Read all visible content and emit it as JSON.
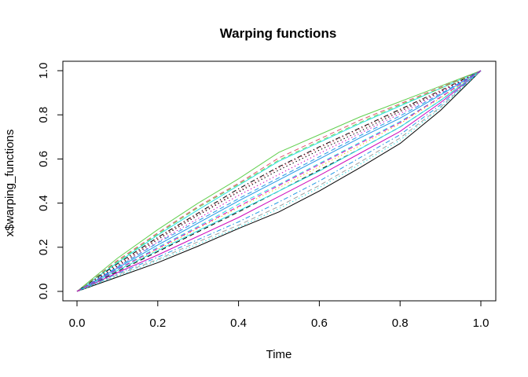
{
  "chart_data": {
    "type": "line",
    "title": "Warping functions",
    "xlabel": "Time",
    "ylabel": "x$warping_functions",
    "xlim": [
      0,
      1
    ],
    "ylim": [
      0,
      1
    ],
    "xticks": [
      0.0,
      0.2,
      0.4,
      0.6,
      0.8,
      1.0
    ],
    "yticks": [
      0.0,
      0.2,
      0.4,
      0.6,
      0.8,
      1.0
    ],
    "xtick_labels": [
      "0.0",
      "0.2",
      "0.4",
      "0.6",
      "0.8",
      "1.0"
    ],
    "ytick_labels": [
      "0.0",
      "0.2",
      "0.4",
      "0.6",
      "0.8",
      "1.0"
    ],
    "grid": false,
    "legend": "none",
    "x": [
      0,
      0.1,
      0.2,
      0.3,
      0.4,
      0.5,
      0.6,
      0.7,
      0.8,
      0.9,
      1.0
    ],
    "series": [
      {
        "color": "#000000",
        "dash": "solid",
        "values": [
          0,
          0.065,
          0.13,
          0.205,
          0.285,
          0.36,
          0.455,
          0.56,
          0.67,
          0.82,
          1
        ]
      },
      {
        "color": "#61d04f",
        "dash": "solid",
        "values": [
          0,
          0.15,
          0.28,
          0.4,
          0.51,
          0.63,
          0.71,
          0.79,
          0.86,
          0.93,
          1
        ]
      },
      {
        "color": "#28e2e5",
        "dash": "solid",
        "values": [
          0,
          0.13,
          0.255,
          0.37,
          0.48,
          0.59,
          0.675,
          0.76,
          0.84,
          0.92,
          1
        ]
      },
      {
        "color": "#df536b",
        "dash": "dashed",
        "values": [
          0,
          0.14,
          0.265,
          0.385,
          0.49,
          0.605,
          0.69,
          0.775,
          0.85,
          0.925,
          1
        ]
      },
      {
        "color": "#000000",
        "dash": "dashdot",
        "values": [
          0,
          0.125,
          0.245,
          0.355,
          0.465,
          0.565,
          0.655,
          0.74,
          0.825,
          0.91,
          1
        ]
      },
      {
        "color": "#cd0bbc",
        "dash": "dotted",
        "values": [
          0,
          0.11,
          0.225,
          0.33,
          0.435,
          0.53,
          0.625,
          0.715,
          0.805,
          0.9,
          1
        ]
      },
      {
        "color": "#2297e6",
        "dash": "solid",
        "values": [
          0,
          0.105,
          0.21,
          0.31,
          0.41,
          0.505,
          0.6,
          0.695,
          0.785,
          0.89,
          1
        ]
      },
      {
        "color": "#28e2e5",
        "dash": "dashed",
        "values": [
          0,
          0.1,
          0.2,
          0.295,
          0.395,
          0.485,
          0.58,
          0.675,
          0.77,
          0.88,
          1
        ]
      },
      {
        "color": "#f5c710",
        "dash": "dotted",
        "values": [
          0,
          0.095,
          0.19,
          0.285,
          0.38,
          0.47,
          0.565,
          0.66,
          0.76,
          0.875,
          1
        ]
      },
      {
        "color": "#000000",
        "dash": "dashed",
        "values": [
          0,
          0.09,
          0.18,
          0.27,
          0.36,
          0.455,
          0.55,
          0.645,
          0.745,
          0.865,
          1
        ]
      },
      {
        "color": "#cd0bbc",
        "dash": "solid",
        "values": [
          0,
          0.085,
          0.165,
          0.25,
          0.335,
          0.43,
          0.525,
          0.625,
          0.725,
          0.855,
          1
        ]
      },
      {
        "color": "#28e2e5",
        "dash": "solid",
        "values": [
          0,
          0.095,
          0.185,
          0.275,
          0.365,
          0.455,
          0.545,
          0.645,
          0.745,
          0.865,
          1
        ]
      },
      {
        "color": "#2297e6",
        "dash": "dashdot",
        "values": [
          0,
          0.08,
          0.155,
          0.235,
          0.315,
          0.405,
          0.5,
          0.605,
          0.71,
          0.845,
          1
        ]
      },
      {
        "color": "#9e9e9e",
        "dash": "dashed",
        "values": [
          0,
          0.075,
          0.145,
          0.225,
          0.3,
          0.385,
          0.48,
          0.585,
          0.695,
          0.835,
          1
        ]
      },
      {
        "color": "#28e2e5",
        "dash": "dotted",
        "values": [
          0,
          0.07,
          0.14,
          0.215,
          0.29,
          0.375,
          0.47,
          0.575,
          0.685,
          0.83,
          1
        ]
      },
      {
        "color": "#000000",
        "dash": "dotted",
        "values": [
          0,
          0.115,
          0.235,
          0.345,
          0.45,
          0.55,
          0.64,
          0.725,
          0.815,
          0.905,
          1
        ]
      },
      {
        "color": "#df536b",
        "dash": "dotted",
        "values": [
          0,
          0.12,
          0.24,
          0.35,
          0.455,
          0.56,
          0.65,
          0.735,
          0.82,
          0.91,
          1
        ]
      },
      {
        "color": "#61d04f",
        "dash": "dashed",
        "values": [
          0,
          0.135,
          0.26,
          0.38,
          0.485,
          0.595,
          0.68,
          0.765,
          0.845,
          0.92,
          1
        ]
      },
      {
        "color": "#2297e6",
        "dash": "dashed",
        "values": [
          0,
          0.11,
          0.22,
          0.32,
          0.42,
          0.515,
          0.61,
          0.705,
          0.795,
          0.895,
          1
        ]
      },
      {
        "color": "#cd0bbc",
        "dash": "dashed",
        "values": [
          0,
          0.1,
          0.195,
          0.29,
          0.385,
          0.48,
          0.575,
          0.67,
          0.765,
          0.88,
          1
        ]
      }
    ]
  }
}
